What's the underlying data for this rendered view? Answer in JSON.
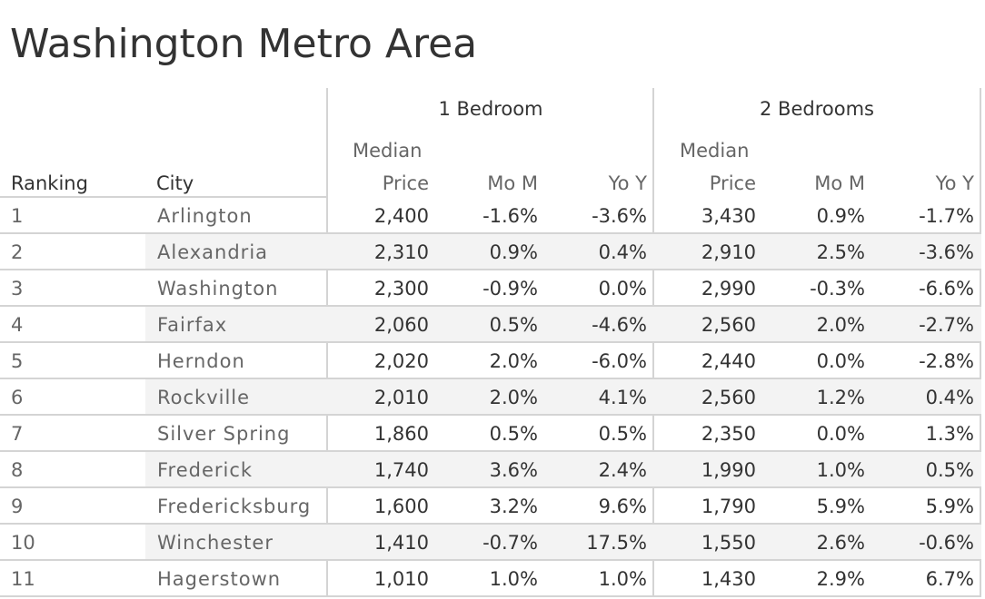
{
  "title": "Washington Metro Area",
  "chart_data": {
    "type": "table",
    "title": "Washington Metro Area",
    "groups": [
      "1 Bedroom",
      "2 Bedrooms"
    ],
    "columns": {
      "ranking": "Ranking",
      "city": "City",
      "median_line1": "Median",
      "median_line2": "Price",
      "mom": "Mo M",
      "yoy": "Yo Y"
    },
    "rows": [
      {
        "rank": "1",
        "city": "Arlington",
        "b1_price": "2,400",
        "b1_mom": "-1.6%",
        "b1_yoy": "-3.6%",
        "b2_price": "3,430",
        "b2_mom": "0.9%",
        "b2_yoy": "-1.7%"
      },
      {
        "rank": "2",
        "city": "Alexandria",
        "b1_price": "2,310",
        "b1_mom": "0.9%",
        "b1_yoy": "0.4%",
        "b2_price": "2,910",
        "b2_mom": "2.5%",
        "b2_yoy": "-3.6%"
      },
      {
        "rank": "3",
        "city": "Washington",
        "b1_price": "2,300",
        "b1_mom": "-0.9%",
        "b1_yoy": "0.0%",
        "b2_price": "2,990",
        "b2_mom": "-0.3%",
        "b2_yoy": "-6.6%"
      },
      {
        "rank": "4",
        "city": "Fairfax",
        "b1_price": "2,060",
        "b1_mom": "0.5%",
        "b1_yoy": "-4.6%",
        "b2_price": "2,560",
        "b2_mom": "2.0%",
        "b2_yoy": "-2.7%"
      },
      {
        "rank": "5",
        "city": "Herndon",
        "b1_price": "2,020",
        "b1_mom": "2.0%",
        "b1_yoy": "-6.0%",
        "b2_price": "2,440",
        "b2_mom": "0.0%",
        "b2_yoy": "-2.8%"
      },
      {
        "rank": "6",
        "city": "Rockville",
        "b1_price": "2,010",
        "b1_mom": "2.0%",
        "b1_yoy": "4.1%",
        "b2_price": "2,560",
        "b2_mom": "1.2%",
        "b2_yoy": "0.4%"
      },
      {
        "rank": "7",
        "city": "Silver Spring",
        "b1_price": "1,860",
        "b1_mom": "0.5%",
        "b1_yoy": "0.5%",
        "b2_price": "2,350",
        "b2_mom": "0.0%",
        "b2_yoy": "1.3%"
      },
      {
        "rank": "8",
        "city": "Frederick",
        "b1_price": "1,740",
        "b1_mom": "3.6%",
        "b1_yoy": "2.4%",
        "b2_price": "1,990",
        "b2_mom": "1.0%",
        "b2_yoy": "0.5%"
      },
      {
        "rank": "9",
        "city": "Fredericksburg",
        "b1_price": "1,600",
        "b1_mom": "3.2%",
        "b1_yoy": "9.6%",
        "b2_price": "1,790",
        "b2_mom": "5.9%",
        "b2_yoy": "5.9%"
      },
      {
        "rank": "10",
        "city": "Winchester",
        "b1_price": "1,410",
        "b1_mom": "-0.7%",
        "b1_yoy": "17.5%",
        "b2_price": "1,550",
        "b2_mom": "2.6%",
        "b2_yoy": "-0.6%"
      },
      {
        "rank": "11",
        "city": "Hagerstown",
        "b1_price": "1,010",
        "b1_mom": "1.0%",
        "b1_yoy": "1.0%",
        "b2_price": "1,430",
        "b2_mom": "2.9%",
        "b2_yoy": "6.7%"
      }
    ]
  }
}
